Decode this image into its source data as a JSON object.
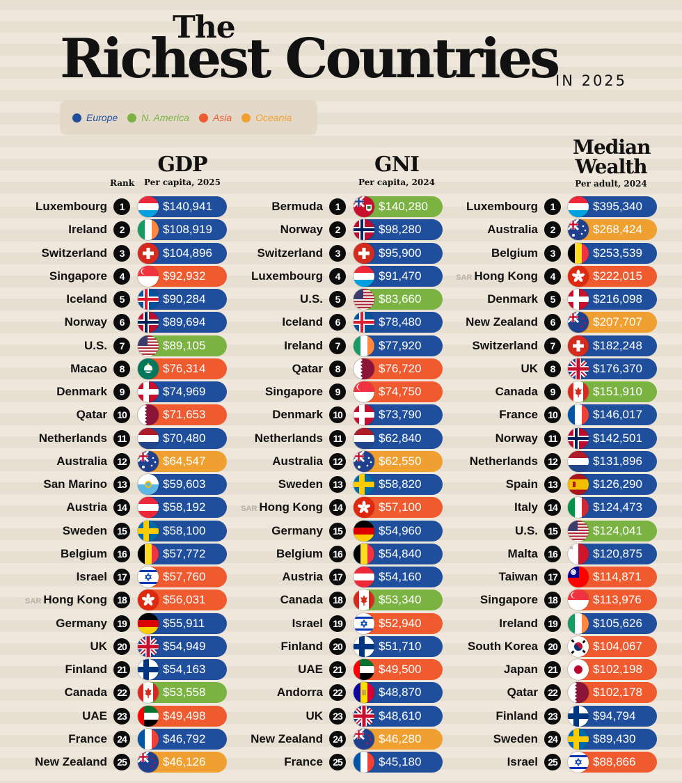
{
  "title": {
    "the": "The",
    "main": "Richest Countries",
    "year": "IN 2025"
  },
  "legend": [
    {
      "label": "Europe",
      "color": "#1f4f9c"
    },
    {
      "label": "N. America",
      "color": "#7bb342"
    },
    {
      "label": "Asia",
      "color": "#f05a2f"
    },
    {
      "label": "Oceania",
      "color": "#f0a030"
    }
  ],
  "rank_label": "Rank",
  "chart_data": [
    {
      "type": "table",
      "title": "GDP",
      "subtitle": "Per capita, 2025",
      "rows": [
        {
          "rank": "1",
          "country": "Luxembourg",
          "value": "$140,941",
          "region": "Europe",
          "flag": "luxembourg"
        },
        {
          "rank": "2",
          "country": "Ireland",
          "value": "$108,919",
          "region": "Europe",
          "flag": "ireland"
        },
        {
          "rank": "3",
          "country": "Switzerland",
          "value": "$104,896",
          "region": "Europe",
          "flag": "switzerland"
        },
        {
          "rank": "4",
          "country": "Singapore",
          "value": "$92,932",
          "region": "Asia",
          "flag": "singapore"
        },
        {
          "rank": "5",
          "country": "Iceland",
          "value": "$90,284",
          "region": "Europe",
          "flag": "iceland"
        },
        {
          "rank": "6",
          "country": "Norway",
          "value": "$89,694",
          "region": "Europe",
          "flag": "norway"
        },
        {
          "rank": "7",
          "country": "U.S.",
          "value": "$89,105",
          "region": "N. America",
          "flag": "us"
        },
        {
          "rank": "8",
          "country": "Macao",
          "value": "$76,314",
          "region": "Asia",
          "flag": "macao"
        },
        {
          "rank": "9",
          "country": "Denmark",
          "value": "$74,969",
          "region": "Europe",
          "flag": "denmark"
        },
        {
          "rank": "10",
          "country": "Qatar",
          "value": "$71,653",
          "region": "Asia",
          "flag": "qatar"
        },
        {
          "rank": "11",
          "country": "Netherlands",
          "value": "$70,480",
          "region": "Europe",
          "flag": "netherlands"
        },
        {
          "rank": "12",
          "country": "Australia",
          "value": "$64,547",
          "region": "Oceania",
          "flag": "australia"
        },
        {
          "rank": "13",
          "country": "San Marino",
          "value": "$59,603",
          "region": "Europe",
          "flag": "sanmarino"
        },
        {
          "rank": "14",
          "country": "Austria",
          "value": "$58,192",
          "region": "Europe",
          "flag": "austria"
        },
        {
          "rank": "15",
          "country": "Sweden",
          "value": "$58,100",
          "region": "Europe",
          "flag": "sweden"
        },
        {
          "rank": "16",
          "country": "Belgium",
          "value": "$57,772",
          "region": "Europe",
          "flag": "belgium"
        },
        {
          "rank": "17",
          "country": "Israel",
          "value": "$57,760",
          "region": "Asia",
          "flag": "israel"
        },
        {
          "rank": "18",
          "country": "Hong Kong",
          "prefix": "SAR",
          "value": "$56,031",
          "region": "Asia",
          "flag": "hongkong"
        },
        {
          "rank": "19",
          "country": "Germany",
          "value": "$55,911",
          "region": "Europe",
          "flag": "germany"
        },
        {
          "rank": "20",
          "country": "UK",
          "value": "$54,949",
          "region": "Europe",
          "flag": "uk"
        },
        {
          "rank": "21",
          "country": "Finland",
          "value": "$54,163",
          "region": "Europe",
          "flag": "finland"
        },
        {
          "rank": "22",
          "country": "Canada",
          "value": "$53,558",
          "region": "N. America",
          "flag": "canada"
        },
        {
          "rank": "23",
          "country": "UAE",
          "value": "$49,498",
          "region": "Asia",
          "flag": "uae"
        },
        {
          "rank": "24",
          "country": "France",
          "value": "$46,792",
          "region": "Europe",
          "flag": "france"
        },
        {
          "rank": "25",
          "country": "New Zealand",
          "value": "$46,126",
          "region": "Oceania",
          "flag": "newzealand"
        }
      ]
    },
    {
      "type": "table",
      "title": "GNI",
      "subtitle": "Per capita, 2024",
      "rows": [
        {
          "rank": "1",
          "country": "Bermuda",
          "value": "$140,280",
          "region": "N. America",
          "flag": "bermuda"
        },
        {
          "rank": "2",
          "country": "Norway",
          "value": "$98,280",
          "region": "Europe",
          "flag": "norway"
        },
        {
          "rank": "3",
          "country": "Switzerland",
          "value": "$95,900",
          "region": "Europe",
          "flag": "switzerland"
        },
        {
          "rank": "4",
          "country": "Luxembourg",
          "value": "$91,470",
          "region": "Europe",
          "flag": "luxembourg"
        },
        {
          "rank": "5",
          "country": "U.S.",
          "value": "$83,660",
          "region": "N. America",
          "flag": "us"
        },
        {
          "rank": "6",
          "country": "Iceland",
          "value": "$78,480",
          "region": "Europe",
          "flag": "iceland"
        },
        {
          "rank": "7",
          "country": "Ireland",
          "value": "$77,920",
          "region": "Europe",
          "flag": "ireland"
        },
        {
          "rank": "8",
          "country": "Qatar",
          "value": "$76,720",
          "region": "Asia",
          "flag": "qatar"
        },
        {
          "rank": "9",
          "country": "Singapore",
          "value": "$74,750",
          "region": "Asia",
          "flag": "singapore"
        },
        {
          "rank": "10",
          "country": "Denmark",
          "value": "$73,790",
          "region": "Europe",
          "flag": "denmark"
        },
        {
          "rank": "11",
          "country": "Netherlands",
          "value": "$62,840",
          "region": "Europe",
          "flag": "netherlands"
        },
        {
          "rank": "12",
          "country": "Australia",
          "value": "$62,550",
          "region": "Oceania",
          "flag": "australia"
        },
        {
          "rank": "13",
          "country": "Sweden",
          "value": "$58,820",
          "region": "Europe",
          "flag": "sweden"
        },
        {
          "rank": "14",
          "country": "Hong Kong",
          "prefix": "SAR",
          "value": "$57,100",
          "region": "Asia",
          "flag": "hongkong"
        },
        {
          "rank": "15",
          "country": "Germany",
          "value": "$54,960",
          "region": "Europe",
          "flag": "germany"
        },
        {
          "rank": "16",
          "country": "Belgium",
          "value": "$54,840",
          "region": "Europe",
          "flag": "belgium"
        },
        {
          "rank": "17",
          "country": "Austria",
          "value": "$54,160",
          "region": "Europe",
          "flag": "austria"
        },
        {
          "rank": "18",
          "country": "Canada",
          "value": "$53,340",
          "region": "N. America",
          "flag": "canada"
        },
        {
          "rank": "19",
          "country": "Israel",
          "value": "$52,940",
          "region": "Asia",
          "flag": "israel"
        },
        {
          "rank": "20",
          "country": "Finland",
          "value": "$51,710",
          "region": "Europe",
          "flag": "finland"
        },
        {
          "rank": "21",
          "country": "UAE",
          "value": "$49,500",
          "region": "Asia",
          "flag": "uae"
        },
        {
          "rank": "22",
          "country": "Andorra",
          "value": "$48,870",
          "region": "Europe",
          "flag": "andorra"
        },
        {
          "rank": "23",
          "country": "UK",
          "value": "$48,610",
          "region": "Europe",
          "flag": "uk"
        },
        {
          "rank": "24",
          "country": "New Zealand",
          "value": "$46,280",
          "region": "Oceania",
          "flag": "newzealand"
        },
        {
          "rank": "25",
          "country": "France",
          "value": "$45,180",
          "region": "Europe",
          "flag": "france"
        }
      ]
    },
    {
      "type": "table",
      "title": "Median Wealth",
      "subtitle": "Per adult, 2024",
      "rows": [
        {
          "rank": "1",
          "country": "Luxembourg",
          "value": "$395,340",
          "region": "Europe",
          "flag": "luxembourg"
        },
        {
          "rank": "2",
          "country": "Australia",
          "value": "$268,424",
          "region": "Oceania",
          "flag": "australia"
        },
        {
          "rank": "3",
          "country": "Belgium",
          "value": "$253,539",
          "region": "Europe",
          "flag": "belgium"
        },
        {
          "rank": "4",
          "country": "Hong Kong",
          "prefix": "SAR",
          "value": "$222,015",
          "region": "Asia",
          "flag": "hongkong"
        },
        {
          "rank": "5",
          "country": "Denmark",
          "value": "$216,098",
          "region": "Europe",
          "flag": "denmark"
        },
        {
          "rank": "6",
          "country": "New Zealand",
          "value": "$207,707",
          "region": "Oceania",
          "flag": "newzealand"
        },
        {
          "rank": "7",
          "country": "Switzerland",
          "value": "$182,248",
          "region": "Europe",
          "flag": "switzerland"
        },
        {
          "rank": "8",
          "country": "UK",
          "value": "$176,370",
          "region": "Europe",
          "flag": "uk"
        },
        {
          "rank": "9",
          "country": "Canada",
          "value": "$151,910",
          "region": "N. America",
          "flag": "canada"
        },
        {
          "rank": "10",
          "country": "France",
          "value": "$146,017",
          "region": "Europe",
          "flag": "france"
        },
        {
          "rank": "11",
          "country": "Norway",
          "value": "$142,501",
          "region": "Europe",
          "flag": "norway"
        },
        {
          "rank": "12",
          "country": "Netherlands",
          "value": "$131,896",
          "region": "Europe",
          "flag": "netherlands"
        },
        {
          "rank": "13",
          "country": "Spain",
          "value": "$126,290",
          "region": "Europe",
          "flag": "spain"
        },
        {
          "rank": "14",
          "country": "Italy",
          "value": "$124,473",
          "region": "Europe",
          "flag": "italy"
        },
        {
          "rank": "15",
          "country": "U.S.",
          "value": "$124,041",
          "region": "N. America",
          "flag": "us"
        },
        {
          "rank": "16",
          "country": "Malta",
          "value": "$120,875",
          "region": "Europe",
          "flag": "malta"
        },
        {
          "rank": "17",
          "country": "Taiwan",
          "value": "$114,871",
          "region": "Asia",
          "flag": "taiwan"
        },
        {
          "rank": "18",
          "country": "Singapore",
          "value": "$113,976",
          "region": "Asia",
          "flag": "singapore"
        },
        {
          "rank": "19",
          "country": "Ireland",
          "value": "$105,626",
          "region": "Europe",
          "flag": "ireland"
        },
        {
          "rank": "20",
          "country": "South Korea",
          "value": "$104,067",
          "region": "Asia",
          "flag": "southkorea"
        },
        {
          "rank": "21",
          "country": "Japan",
          "value": "$102,198",
          "region": "Asia",
          "flag": "japan"
        },
        {
          "rank": "22",
          "country": "Qatar",
          "value": "$102,178",
          "region": "Asia",
          "flag": "qatar"
        },
        {
          "rank": "23",
          "country": "Finland",
          "value": "$94,794",
          "region": "Europe",
          "flag": "finland"
        },
        {
          "rank": "24",
          "country": "Sweden",
          "value": "$89,430",
          "region": "Europe",
          "flag": "sweden"
        },
        {
          "rank": "25",
          "country": "Israel",
          "value": "$88,866",
          "region": "Asia",
          "flag": "israel"
        }
      ]
    }
  ]
}
